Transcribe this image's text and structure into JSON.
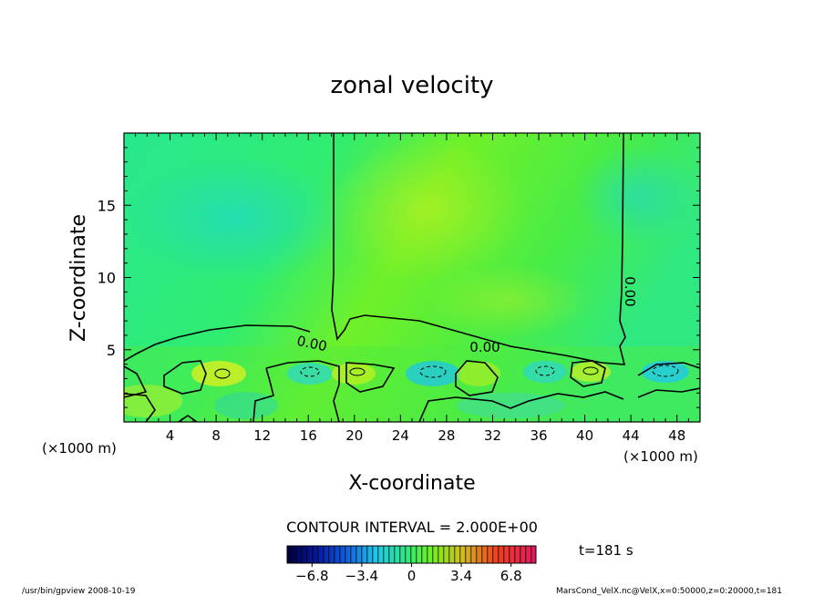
{
  "chart_data": {
    "type": "heatmap",
    "title": "zonal velocity",
    "xlabel": "X-coordinate",
    "ylabel": "Z-coordinate",
    "x_units": "(×1000 m)",
    "y_units": "(×1000 m)",
    "xlim": [
      0,
      50
    ],
    "ylim": [
      0,
      20
    ],
    "x_ticks": [
      4,
      8,
      12,
      16,
      20,
      24,
      28,
      32,
      36,
      40,
      44,
      48
    ],
    "y_ticks": [
      5,
      10,
      15
    ],
    "contour_interval_text": "CONTOUR INTERVAL = 2.000E+00",
    "contour_label": "0.00",
    "time_text": "t=181 s",
    "colorbar": {
      "range": [
        -8.5,
        8.5
      ],
      "tick_values": [
        -6.8,
        -3.4,
        0,
        3.4,
        6.8
      ],
      "tick_labels": [
        "−6.8",
        "−3.4",
        "0",
        "3.4",
        "6.8"
      ],
      "colors": [
        "#000060",
        "#1020c8",
        "#20a0f0",
        "#30e0c0",
        "#40f060",
        "#80f020",
        "#f0c020",
        "#f04020",
        "#e02060"
      ]
    },
    "background_color": "#40ec50",
    "footer_left": "/usr/bin/gpview   2008-10-19",
    "footer_right": "MarsCond_VelX.nc@VelX,x=0:50000,z=0:20000,t=181"
  }
}
